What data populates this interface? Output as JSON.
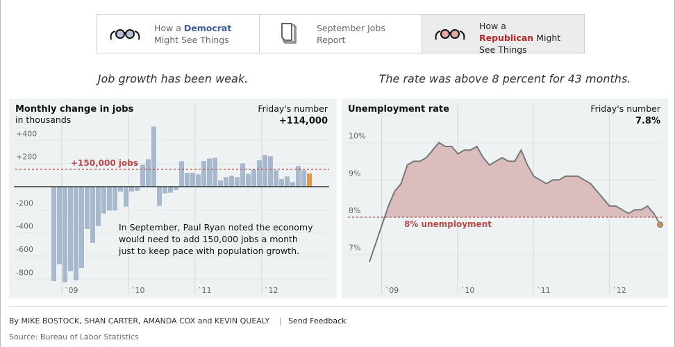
{
  "tabs": [
    {
      "pre": "How a ",
      "em": "Democrat",
      "post": "Might See Things"
    },
    {
      "pre": "September Jobs",
      "em": "",
      "post": "Report"
    },
    {
      "pre": "How a",
      "em": "Republican",
      "post": " Might",
      "post2": "See Things"
    }
  ],
  "headlines": {
    "left": "Job growth has been weak.",
    "right": "The rate was above 8 percent for 43 months."
  },
  "chart_data": [
    {
      "type": "bar",
      "title": "Monthly change in jobs",
      "subtitle": "in thousands",
      "callout_label": "Friday's number",
      "callout_value": "+114,000",
      "start_month": "Nov 2008",
      "end_month": "Sep 2012",
      "values": [
        -816,
        -670,
        -826,
        -730,
        -810,
        -702,
        -366,
        -486,
        -340,
        -232,
        -206,
        -206,
        -42,
        -172,
        -42,
        -36,
        190,
        238,
        520,
        -166,
        -58,
        -52,
        -30,
        220,
        120,
        120,
        106,
        222,
        244,
        250,
        54,
        82,
        94,
        82,
        202,
        112,
        148,
        228,
        274,
        262,
        142,
        66,
        88,
        40,
        178,
        142,
        114
      ],
      "ylim": [
        -840,
        540
      ],
      "yticks": [
        400,
        200,
        -200,
        -400,
        -600,
        -800
      ],
      "ytick_labels": [
        "+400",
        "+200",
        "-200",
        "-400",
        "-600",
        "-800"
      ],
      "xtick_labels": [
        "`09",
        "`10",
        "`11",
        "`12"
      ],
      "reference_line": {
        "value": 150,
        "label": "+150,000 jobs"
      },
      "annotation": "In September, Paul Ryan noted the economy would need to add 150,000 jobs a month just to keep pace with population growth.",
      "annotation_lines": [
        "In September, Paul Ryan noted the economy",
        "would need to add 150,000 jobs a month",
        "just to keep pace with population growth."
      ],
      "colors": {
        "bar": "#a9b9cd",
        "highlight": "#e09a4a",
        "ref": "#b94a48"
      }
    },
    {
      "type": "area",
      "title": "Unemployment rate",
      "callout_label": "Friday's number",
      "callout_value": "7.8%",
      "start_month": "Nov 2008",
      "end_month": "Sep 2012",
      "values": [
        6.8,
        7.3,
        7.8,
        8.3,
        8.7,
        8.9,
        9.4,
        9.5,
        9.5,
        9.6,
        9.8,
        10.0,
        9.9,
        9.9,
        9.7,
        9.8,
        9.8,
        9.9,
        9.6,
        9.4,
        9.5,
        9.6,
        9.5,
        9.5,
        9.8,
        9.4,
        9.1,
        9.0,
        8.9,
        9.0,
        9.0,
        9.1,
        9.1,
        9.1,
        9.0,
        8.9,
        8.7,
        8.5,
        8.3,
        8.3,
        8.2,
        8.1,
        8.2,
        8.2,
        8.3,
        8.1,
        7.8
      ],
      "ylim": [
        6.4,
        10.4
      ],
      "yticks": [
        10,
        9,
        8,
        7
      ],
      "ytick_labels": [
        "10%",
        "9%",
        "8%",
        "7%"
      ],
      "xtick_labels": [
        "`09",
        "`10",
        "`11",
        "`12"
      ],
      "reference_line": {
        "value": 8,
        "label": "8% unemployment"
      },
      "colors": {
        "line": "#777777",
        "fill": "#dcbdbe",
        "ref": "#b94a48",
        "dot": "#c8925a"
      }
    }
  ],
  "footer": {
    "byline": "By MIKE BOSTOCK, SHAN CARTER, AMANDA COX and KEVIN QUEALY",
    "sep": "|",
    "feedback": "Send Feedback",
    "source": "Source: Bureau of Labor Statistics"
  }
}
